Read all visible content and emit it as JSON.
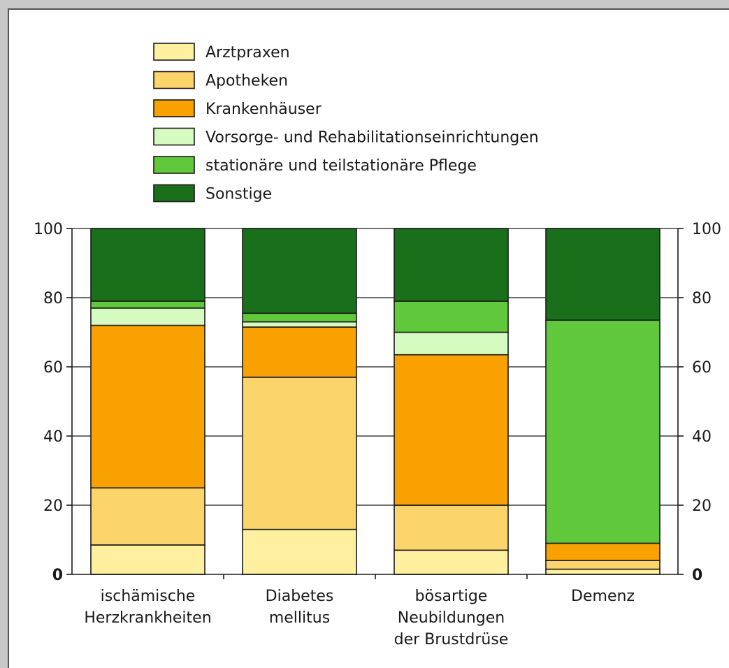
{
  "chart_data": {
    "type": "bar",
    "stacked": true,
    "percent": true,
    "categories": [
      [
        "ischämische",
        "Herzkrankheiten"
      ],
      [
        "Diabetes",
        "mellitus"
      ],
      [
        "bösartige",
        "Neubildungen",
        "der Brustdrüse"
      ],
      [
        "Demenz"
      ]
    ],
    "series": [
      {
        "name": "Arztpraxen",
        "color": "#fff0a0",
        "values": [
          8.5,
          13,
          7,
          1.5
        ]
      },
      {
        "name": "Apotheken",
        "color": "#fbd56c",
        "values": [
          16.5,
          44,
          13,
          2.5
        ]
      },
      {
        "name": "Krankenhäuser",
        "color": "#f9a100",
        "values": [
          47,
          14.5,
          43.5,
          5
        ]
      },
      {
        "name": "Vorsorge- und Rehabilitationseinrichtungen",
        "color": "#d6fbc0",
        "values": [
          5,
          1.5,
          6.5,
          0
        ]
      },
      {
        "name": "stationäre und teilstationäre Pflege",
        "color": "#5fc93b",
        "values": [
          2,
          2.5,
          9,
          64.5
        ]
      },
      {
        "name": "Sonstige",
        "color": "#1a701a",
        "values": [
          21,
          24.5,
          21,
          26.5
        ]
      }
    ],
    "ylim": [
      0,
      100
    ],
    "yticks": [
      0,
      20,
      40,
      60,
      80,
      100
    ],
    "ytick_labels_left": [
      "0",
      "20",
      "40",
      "60",
      "80",
      "100"
    ],
    "ytick_labels_right": [
      "0",
      "20",
      "40",
      "60",
      "80",
      "100"
    ],
    "grid": true,
    "legend_position": "top"
  }
}
